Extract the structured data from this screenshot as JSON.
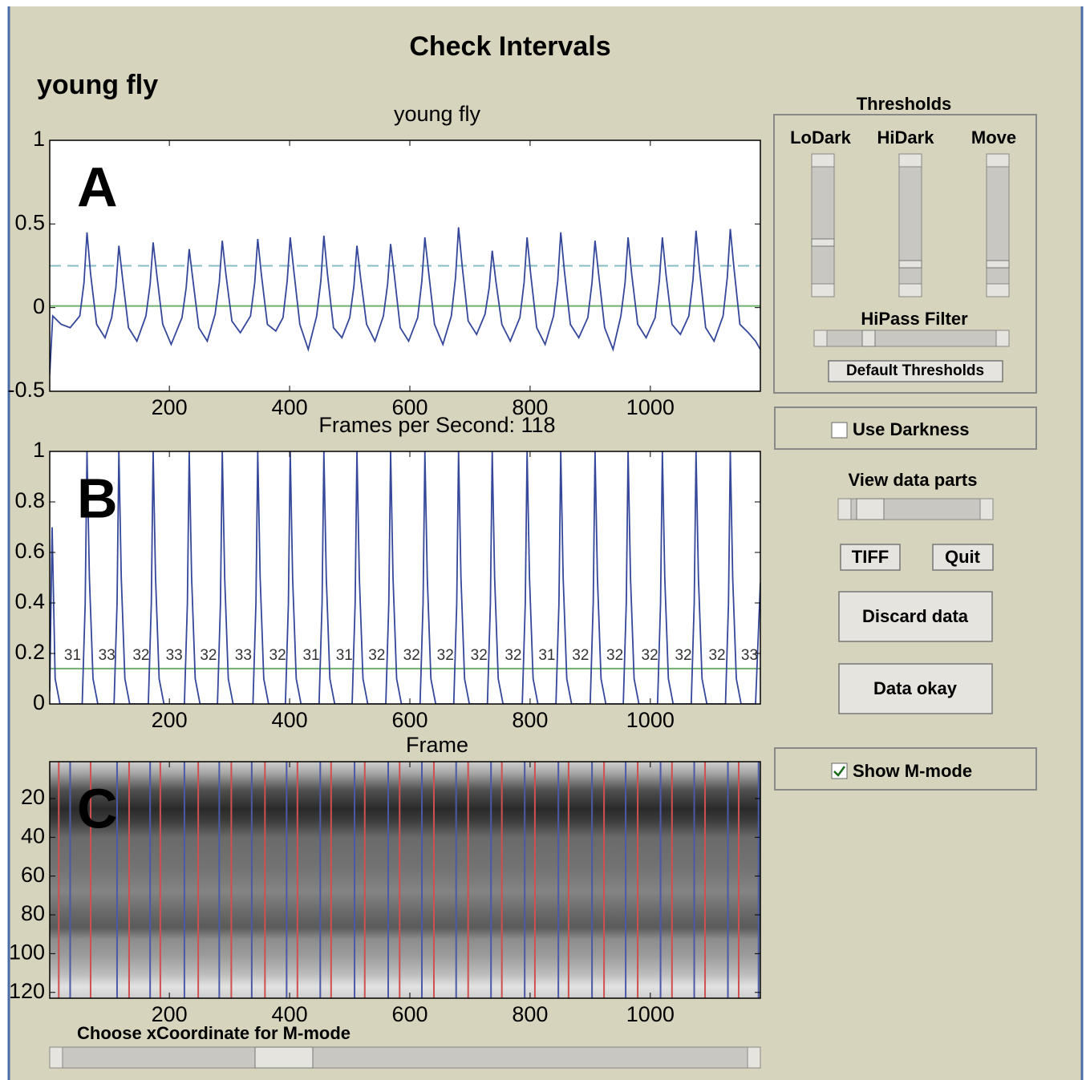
{
  "header": {
    "title": "Check Intervals",
    "subtitle": "young fly"
  },
  "chart_data": [
    {
      "type": "line",
      "panel_label": "A",
      "title": "young fly",
      "xlim": [
        1,
        1183
      ],
      "ylim": [
        -0.5,
        1
      ],
      "xticks": [
        200,
        400,
        600,
        800,
        1000
      ],
      "yticks": [
        -0.5,
        0,
        0.5,
        1
      ],
      "series": [
        {
          "color": "#34479a",
          "x": [
            1,
            6,
            20,
            35,
            51,
            58,
            63,
            69,
            79,
            93,
            104,
            111,
            116,
            122,
            132,
            146,
            161,
            168,
            173,
            179,
            189,
            203,
            221,
            228,
            233,
            239,
            249,
            263,
            276,
            283,
            288,
            294,
            304,
            318,
            335,
            342,
            347,
            353,
            363,
            377,
            389,
            396,
            401,
            407,
            417,
            431,
            445,
            452,
            457,
            463,
            473,
            487,
            500,
            507,
            512,
            518,
            528,
            542,
            556,
            563,
            568,
            574,
            584,
            598,
            613,
            620,
            625,
            631,
            641,
            655,
            669,
            676,
            681,
            687,
            697,
            711,
            725,
            732,
            737,
            743,
            753,
            767,
            783,
            790,
            795,
            801,
            811,
            825,
            839,
            846,
            851,
            857,
            867,
            881,
            896,
            903,
            908,
            914,
            924,
            938,
            951,
            958,
            963,
            969,
            979,
            993,
            1008,
            1015,
            1020,
            1026,
            1036,
            1050,
            1064,
            1071,
            1076,
            1082,
            1092,
            1106,
            1121,
            1128,
            1133,
            1139,
            1149,
            1163,
            1175,
            1183
          ],
          "values": [
            -0.4,
            -0.05,
            -0.1,
            -0.12,
            -0.05,
            0.15,
            0.45,
            0.2,
            -0.1,
            -0.18,
            -0.06,
            0.12,
            0.37,
            0.18,
            -0.12,
            -0.2,
            -0.05,
            0.14,
            0.39,
            0.2,
            -0.1,
            -0.22,
            -0.06,
            0.12,
            0.35,
            0.17,
            -0.12,
            -0.2,
            -0.04,
            0.15,
            0.4,
            0.2,
            -0.08,
            -0.15,
            -0.05,
            0.15,
            0.41,
            0.2,
            -0.1,
            -0.14,
            -0.06,
            0.16,
            0.42,
            0.22,
            -0.1,
            -0.25,
            -0.05,
            0.16,
            0.43,
            0.2,
            -0.12,
            -0.18,
            -0.06,
            0.13,
            0.37,
            0.18,
            -0.1,
            -0.2,
            -0.05,
            0.14,
            0.38,
            0.2,
            -0.12,
            -0.2,
            -0.06,
            0.16,
            0.42,
            0.22,
            -0.1,
            -0.22,
            -0.05,
            0.18,
            0.48,
            0.25,
            -0.08,
            -0.16,
            -0.04,
            0.12,
            0.34,
            0.16,
            -0.1,
            -0.2,
            -0.06,
            0.15,
            0.42,
            0.2,
            -0.12,
            -0.22,
            -0.05,
            0.16,
            0.45,
            0.22,
            -0.1,
            -0.18,
            -0.06,
            0.15,
            0.4,
            0.2,
            -0.12,
            -0.25,
            -0.05,
            0.15,
            0.42,
            0.2,
            -0.1,
            -0.18,
            -0.06,
            0.16,
            0.42,
            0.2,
            -0.1,
            -0.16,
            -0.05,
            0.17,
            0.46,
            0.22,
            -0.12,
            -0.2,
            -0.05,
            0.18,
            0.47,
            0.24,
            -0.1,
            -0.15,
            -0.2,
            -0.25
          ]
        }
      ],
      "thresholds": [
        {
          "value": 0.25,
          "color": "#86bcc4",
          "dashed": true
        },
        {
          "value": 0.01,
          "color": "#6fae6f",
          "dashed": false
        }
      ]
    },
    {
      "type": "line",
      "panel_label": "B",
      "title": "Frames per Second: 118",
      "xlabel": "Frame",
      "xlim": [
        1,
        1183
      ],
      "ylim": [
        0,
        1
      ],
      "xticks": [
        200,
        400,
        600,
        800,
        1000
      ],
      "yticks": [
        0,
        0.2,
        0.4,
        0.6,
        0.8,
        1
      ],
      "series": [
        {
          "color": "#34479a",
          "x": [
            1,
            5,
            10,
            18,
            55,
            60,
            63,
            67,
            73,
            81,
            108,
            113,
            116,
            120,
            126,
            134,
            165,
            170,
            173,
            177,
            183,
            191,
            225,
            230,
            233,
            237,
            243,
            251,
            280,
            285,
            288,
            292,
            298,
            306,
            339,
            344,
            347,
            351,
            357,
            365,
            393,
            398,
            401,
            405,
            411,
            419,
            449,
            454,
            457,
            461,
            467,
            475,
            504,
            509,
            512,
            516,
            522,
            530,
            560,
            565,
            568,
            572,
            578,
            586,
            617,
            622,
            625,
            629,
            635,
            643,
            673,
            678,
            681,
            685,
            691,
            699,
            729,
            734,
            737,
            741,
            747,
            755,
            787,
            792,
            795,
            799,
            805,
            813,
            843,
            848,
            851,
            855,
            861,
            869,
            900,
            905,
            908,
            912,
            918,
            926,
            955,
            960,
            963,
            967,
            973,
            981,
            1012,
            1017,
            1020,
            1024,
            1030,
            1038,
            1068,
            1073,
            1076,
            1080,
            1086,
            1094,
            1125,
            1130,
            1133,
            1137,
            1143,
            1151,
            1175,
            1183
          ],
          "values": [
            0.05,
            0.7,
            0.1,
            0,
            0,
            0.4,
            1,
            0.5,
            0.1,
            0,
            0,
            0.4,
            1,
            0.5,
            0.1,
            0,
            0,
            0.4,
            1,
            0.5,
            0.1,
            0,
            0,
            0.4,
            1,
            0.5,
            0.1,
            0,
            0,
            0.4,
            1,
            0.5,
            0.1,
            0,
            0,
            0.4,
            1,
            0.5,
            0.1,
            0,
            0,
            0.4,
            1,
            0.5,
            0.1,
            0,
            0,
            0.4,
            1,
            0.5,
            0.1,
            0,
            0,
            0.4,
            1,
            0.5,
            0.1,
            0,
            0,
            0.4,
            1,
            0.5,
            0.1,
            0,
            0,
            0.4,
            1,
            0.5,
            0.1,
            0,
            0,
            0.4,
            1,
            0.5,
            0.1,
            0,
            0,
            0.4,
            1,
            0.5,
            0.1,
            0,
            0,
            0.4,
            1,
            0.5,
            0.1,
            0,
            0,
            0.4,
            1,
            0.5,
            0.1,
            0,
            0,
            0.4,
            1,
            0.5,
            0.1,
            0,
            0,
            0.4,
            1,
            0.5,
            0.1,
            0,
            0,
            0.4,
            1,
            0.5,
            0.1,
            0,
            0,
            0.4,
            1,
            0.5,
            0.1,
            0,
            0,
            0.4,
            1,
            0.5,
            0.1,
            0,
            0,
            0.48
          ]
        }
      ],
      "thresholds": [
        {
          "value": 0.14,
          "color": "#6fae6f",
          "dashed": false
        }
      ],
      "interval_labels": {
        "x": [
          39,
          96,
          153,
          208,
          265,
          323,
          380,
          436,
          491,
          545,
          603,
          659,
          715,
          772,
          828,
          884,
          941,
          999,
          1055,
          1111,
          1165
        ],
        "values": [
          31,
          33,
          32,
          33,
          32,
          33,
          32,
          31,
          31,
          32,
          32,
          32,
          32,
          32,
          31,
          32,
          32,
          32,
          32,
          32,
          33
        ]
      }
    },
    {
      "type": "image",
      "panel_label": "C",
      "xlim": [
        1,
        1183
      ],
      "ylim": [
        1,
        123
      ],
      "y_reversed": true,
      "xticks": [
        200,
        400,
        600,
        800,
        1000
      ],
      "yticks": [
        20,
        40,
        60,
        80,
        100,
        120
      ],
      "marker_lines": [
        {
          "color": "#d05050",
          "x": [
            16,
            69,
            133,
            185,
            248,
            303,
            359,
            413,
            469,
            525,
            583,
            640,
            697,
            753,
            808,
            864,
            923,
            979,
            1036,
            1091,
            1147
          ]
        },
        {
          "color": "#4a5aa8",
          "x": [
            35,
            113,
            168,
            225,
            283,
            337,
            395,
            451,
            508,
            564,
            620,
            677,
            735,
            791,
            847,
            903,
            959,
            1017,
            1073,
            1129,
            1180
          ]
        }
      ]
    }
  ],
  "controls": {
    "thresholds": {
      "title": "Thresholds",
      "sliders": [
        "LoDark",
        "HiDark",
        "Move"
      ],
      "hipass_label": "HiPass Filter",
      "default_button": "Default Thresholds"
    },
    "use_darkness": {
      "label": "Use Darkness",
      "checked": false
    },
    "view_data_parts": "View data parts",
    "buttons": [
      "TIFF",
      "Quit",
      "Discard data",
      "Data okay"
    ],
    "show_mmode": {
      "label": "Show M-mode",
      "checked": true
    },
    "mmode_slider_label": "Choose xCoordinate for M-mode"
  }
}
